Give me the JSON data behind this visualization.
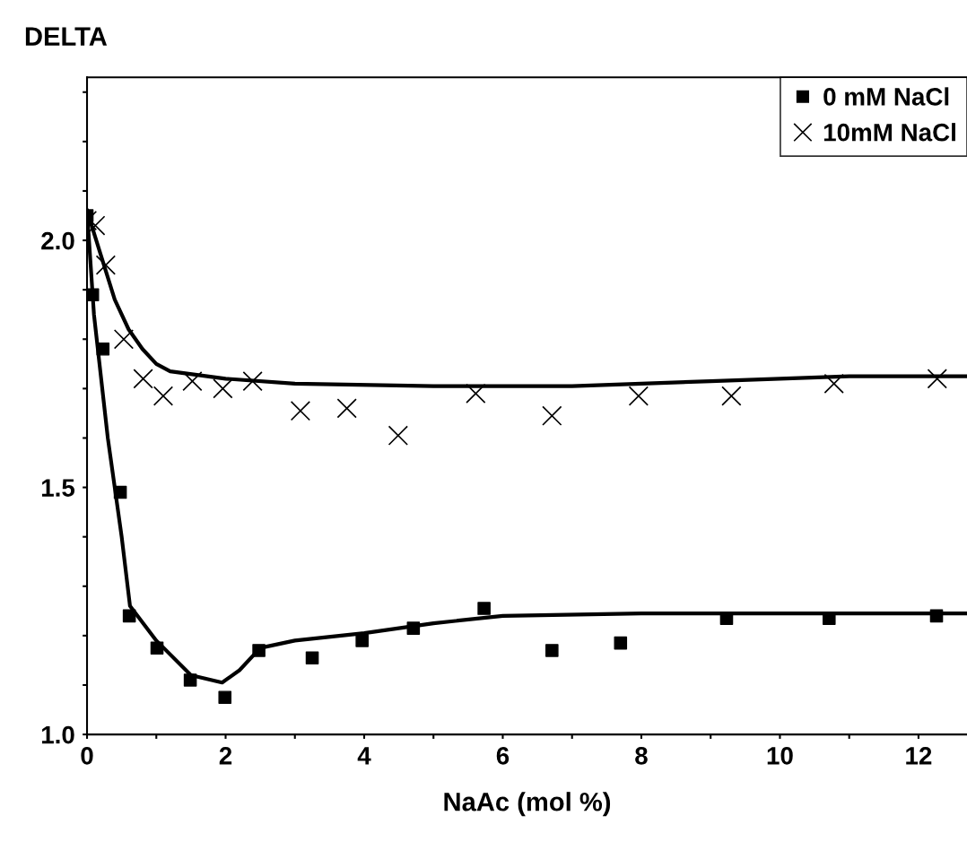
{
  "chart_data": {
    "type": "scatter",
    "title": "DELTA",
    "xlabel": "NaAc (mol %)",
    "xlim": [
      0,
      12.7
    ],
    "ylim": [
      1.0,
      2.33
    ],
    "xticks": [
      0,
      {
        "value": 1,
        "label": null
      },
      2,
      {
        "value": 3,
        "label": null
      },
      4,
      {
        "value": 5,
        "label": null
      },
      6,
      {
        "value": 7,
        "label": null
      },
      8,
      {
        "value": 9,
        "label": null
      },
      10,
      {
        "value": 11,
        "label": null
      },
      12
    ],
    "yticks": [
      {
        "value": 1,
        "label": "1.0"
      },
      {
        "value": 1.1,
        "label": null
      },
      {
        "value": 1.2,
        "label": null
      },
      {
        "value": 1.3,
        "label": null
      },
      {
        "value": 1.4,
        "label": null
      },
      1.5,
      {
        "value": 1.6,
        "label": null
      },
      {
        "value": 1.7,
        "label": null
      },
      {
        "value": 1.8,
        "label": null
      },
      {
        "value": 1.9,
        "label": null
      },
      {
        "value": 2,
        "label": "2.0"
      },
      {
        "value": 2.1,
        "label": null
      },
      {
        "value": 2.2,
        "label": null
      },
      {
        "value": 2.3,
        "label": null
      }
    ],
    "legend": "top right",
    "grid": false,
    "series": [
      {
        "name": "0 mM NaCl",
        "color": "#000000",
        "marker": "square",
        "x": [
          0,
          0.08,
          0.23,
          0.48,
          0.61,
          1.01,
          1.49,
          1.99,
          2.48,
          3.25,
          3.97,
          4.71,
          5.73,
          6.71,
          7.7,
          9.23,
          10.71,
          12.26
        ],
        "values": [
          2.05,
          1.89,
          1.78,
          1.49,
          1.24,
          1.175,
          1.11,
          1.075,
          1.17,
          1.155,
          1.19,
          1.215,
          1.255,
          1.17,
          1.185,
          1.235,
          1.235,
          1.24
        ]
      },
      {
        "name": "10mM NaCl",
        "color": "#000000",
        "marker": "cross",
        "x": [
          0,
          0.12,
          0.27,
          0.53,
          0.81,
          1.1,
          1.52,
          1.96,
          2.39,
          3.08,
          3.75,
          4.49,
          5.61,
          6.71,
          7.96,
          9.3,
          10.78,
          12.27
        ],
        "values": [
          2.04,
          2.03,
          1.95,
          1.8,
          1.72,
          1.685,
          1.715,
          1.7,
          1.715,
          1.655,
          1.66,
          1.605,
          1.69,
          1.645,
          1.685,
          1.685,
          1.71,
          1.72
        ]
      },
      {
        "type": "line",
        "color": "#000000",
        "line_style": "solid",
        "x": [
          0,
          0.1,
          0.3,
          0.5,
          0.62,
          1.0,
          1.5,
          1.95,
          2.2,
          2.5,
          3,
          4,
          5,
          6,
          8,
          10,
          12.7
        ],
        "values": [
          2.06,
          1.85,
          1.6,
          1.4,
          1.26,
          1.19,
          1.12,
          1.105,
          1.13,
          1.175,
          1.19,
          1.205,
          1.225,
          1.24,
          1.245,
          1.245,
          1.245
        ]
      },
      {
        "type": "line",
        "color": "#000000",
        "line_style": "solid",
        "x": [
          0,
          0.2,
          0.4,
          0.6,
          0.8,
          1.0,
          1.2,
          2,
          3,
          5,
          7,
          8,
          9,
          10,
          11,
          12.7
        ],
        "values": [
          2.06,
          1.97,
          1.88,
          1.82,
          1.78,
          1.75,
          1.735,
          1.72,
          1.71,
          1.705,
          1.705,
          1.71,
          1.715,
          1.72,
          1.725,
          1.725
        ]
      }
    ]
  }
}
